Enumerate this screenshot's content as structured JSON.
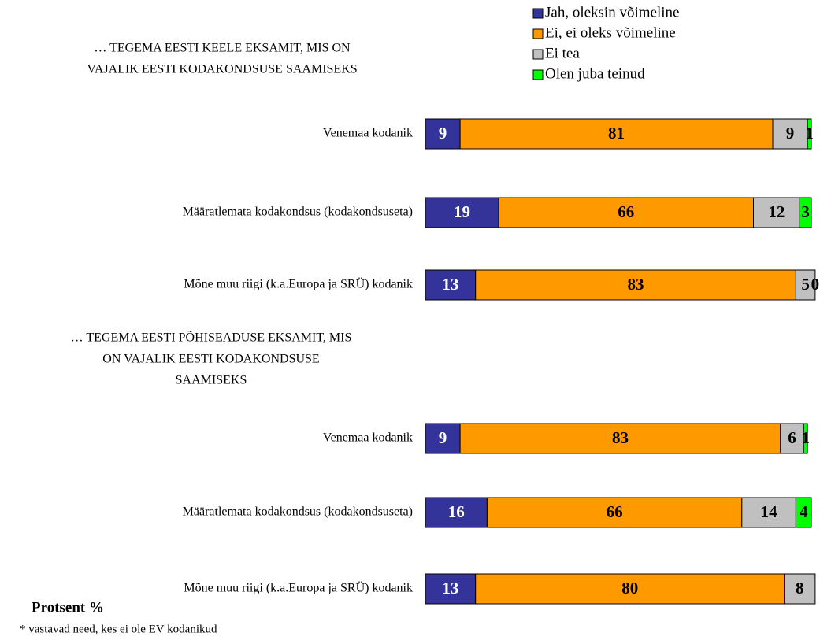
{
  "chart_data": {
    "type": "stacked-bar-horizontal",
    "group_titles": [
      [
        "… TEGEMA EESTI KEELE EKSAMIT, MIS ON",
        "VAJALIK EESTI KODAKONDSUSE SAAMISEKS"
      ],
      [
        "… TEGEMA EESTI PÕHISEADUSE EKSAMIT, MIS",
        "ON VAJALIK EESTI KODAKONDSUSE",
        "SAAMISEKS"
      ]
    ],
    "categories": [
      "Venemaa kodanik",
      "Määratlemata kodakondsus (kodakondsuseta)",
      "Mõne muu riigi (k.a.Europa ja SRÜ) kodanik",
      "Venemaa kodanik",
      "Määratlemata kodakondsus (kodakondsuseta)",
      "Mõne muu riigi (k.a.Europa ja SRÜ) kodanik"
    ],
    "series": [
      {
        "name": "Jah, oleksin võimeline",
        "color": "#333399",
        "values": [
          9,
          19,
          13,
          9,
          16,
          13
        ]
      },
      {
        "name": "Ei, ei oleks võimeline",
        "color": "#ff9900",
        "values": [
          81,
          66,
          83,
          83,
          66,
          80
        ]
      },
      {
        "name": "Ei tea",
        "color": "#c0c0c0",
        "values": [
          9,
          12,
          5,
          6,
          14,
          8
        ]
      },
      {
        "name": "Olen juba teinud",
        "color": "#00ff00",
        "values": [
          1,
          3,
          0,
          1,
          4,
          null
        ]
      }
    ],
    "xlim": [
      0,
      100
    ],
    "axis_label": "Protsent %",
    "footnote": "* vastavad need, kes ei ole EV kodanikud"
  }
}
